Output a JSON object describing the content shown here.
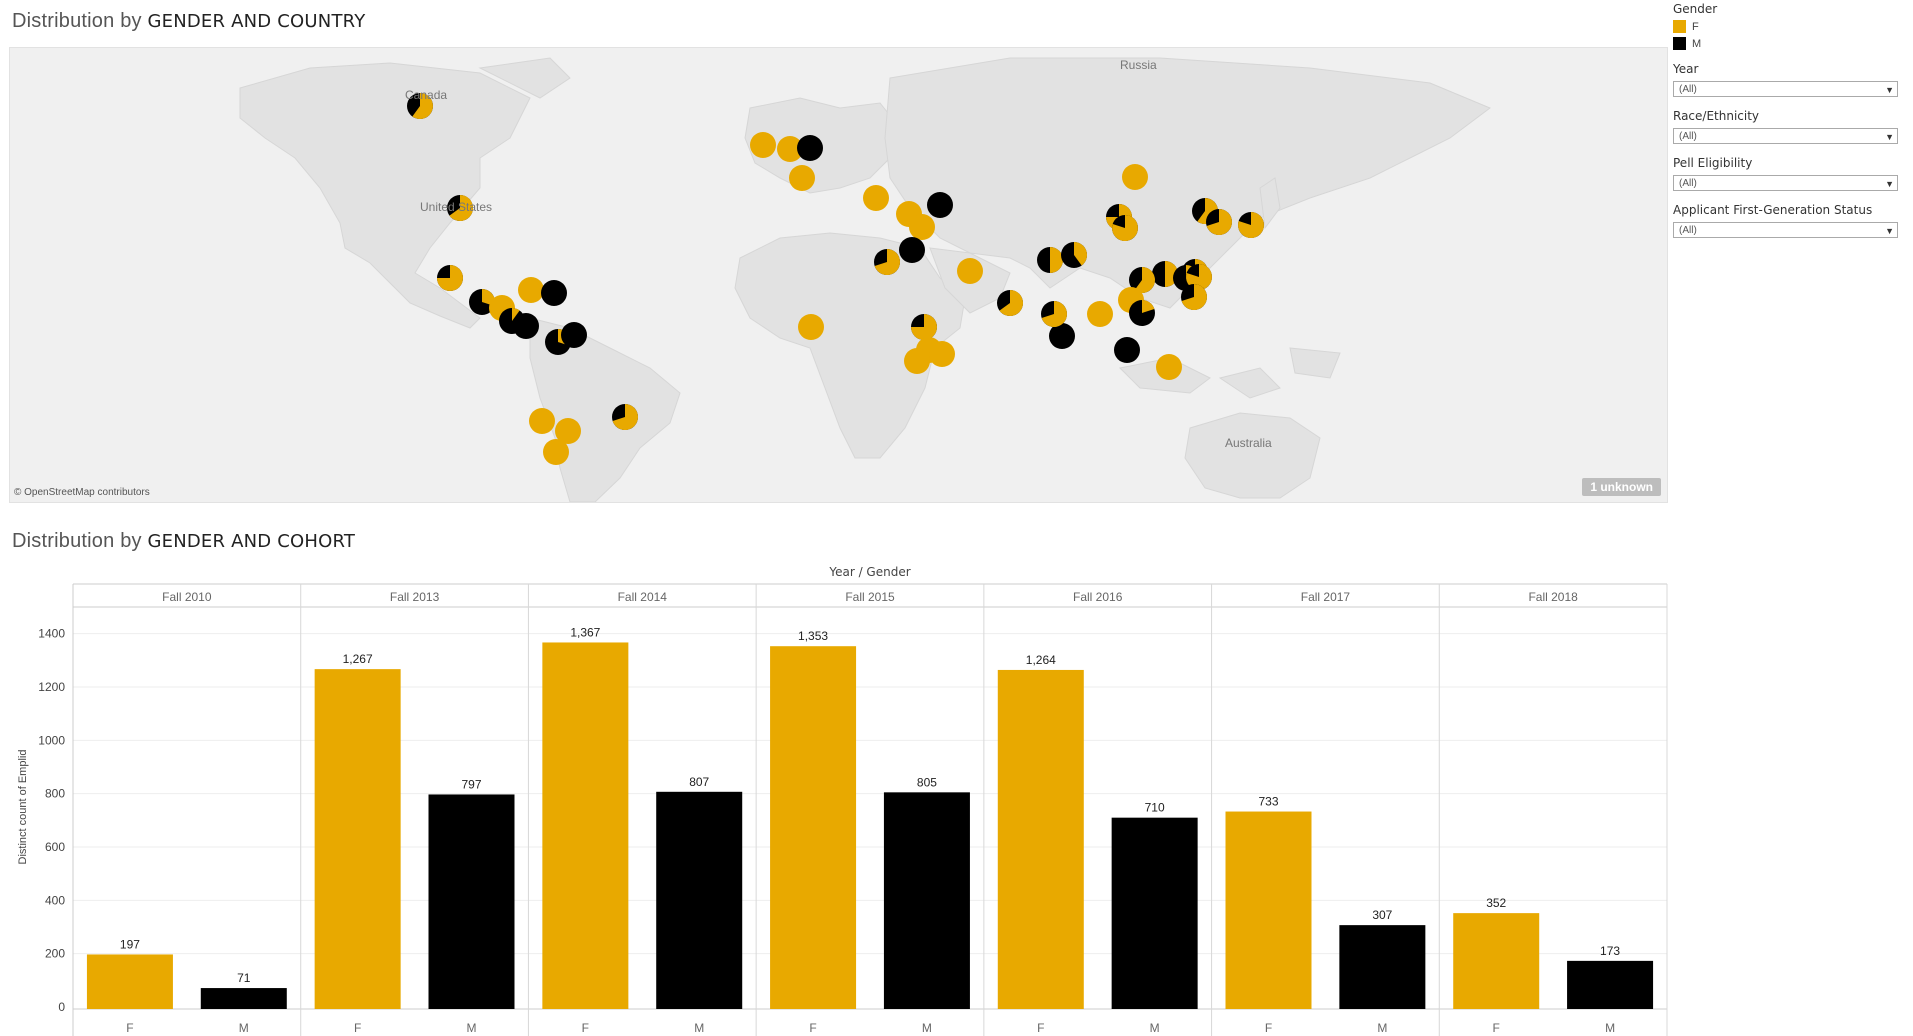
{
  "map_title_prefix": "Distribution by ",
  "map_title_bold": "GENDER AND COUNTRY",
  "chart_title_prefix": "Distribution by ",
  "chart_title_bold": "GENDER AND COHORT",
  "map": {
    "attribution": "© OpenStreetMap contributors",
    "unknown_badge": "1 unknown",
    "labels": {
      "russia": "Russia",
      "canada": "Canada",
      "united_states": "United States",
      "australia": "Australia"
    }
  },
  "legend": {
    "title": "Gender",
    "items": [
      {
        "label": "F",
        "color": "#e8a900"
      },
      {
        "label": "M",
        "color": "#000000"
      }
    ]
  },
  "filters": [
    {
      "label": "Year",
      "value": "(All)"
    },
    {
      "label": "Race/Ethnicity",
      "value": "(All)"
    },
    {
      "label": "Pell Eligibility",
      "value": "(All)"
    },
    {
      "label": "Applicant First-Generation Status",
      "value": "(All)"
    }
  ],
  "chart_data": {
    "type": "bar",
    "header_label": "Year / Gender",
    "ylabel": "Distinct count of Emplid",
    "ylim": [
      0,
      1500
    ],
    "yticks": [
      0,
      200,
      400,
      600,
      800,
      1000,
      1200,
      1400
    ],
    "colors": {
      "F": "#e8a900",
      "M": "#000000"
    },
    "groups": [
      {
        "name": "Fall 2010",
        "F": 197,
        "M": 71,
        "F_label": "197",
        "M_label": "71"
      },
      {
        "name": "Fall 2013",
        "F": 1267,
        "M": 797,
        "F_label": "1,267",
        "M_label": "797"
      },
      {
        "name": "Fall 2014",
        "F": 1367,
        "M": 807,
        "F_label": "1,367",
        "M_label": "807"
      },
      {
        "name": "Fall 2015",
        "F": 1353,
        "M": 805,
        "F_label": "1,353",
        "M_label": "805"
      },
      {
        "name": "Fall 2016",
        "F": 1264,
        "M": 710,
        "F_label": "1,264",
        "M_label": "710"
      },
      {
        "name": "Fall 2017",
        "F": 733,
        "M": 307,
        "F_label": "733",
        "M_label": "307"
      },
      {
        "name": "Fall 2018",
        "F": 352,
        "M": 173,
        "F_label": "352",
        "M_label": "173"
      }
    ]
  }
}
